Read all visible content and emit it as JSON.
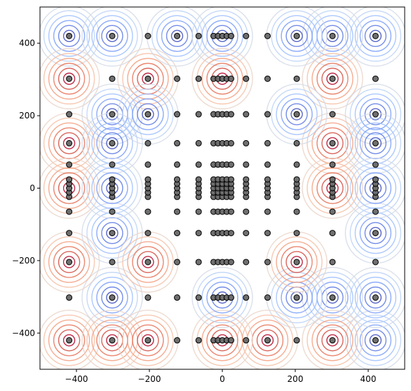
{
  "chart_data": {
    "type": "scatter",
    "title": "",
    "xlabel": "",
    "ylabel": "",
    "xlim": [
      -500,
      500
    ],
    "ylim": [
      -500,
      500
    ],
    "x_ticks": [
      -400,
      -200,
      0,
      200,
      400
    ],
    "y_ticks": [
      -400,
      -200,
      0,
      200,
      400
    ],
    "x_tick_labels": [
      "−400",
      "−200",
      "0",
      "200",
      "400"
    ],
    "y_tick_labels": [
      "−400",
      "−200",
      "0",
      "200",
      "400"
    ],
    "grid": false,
    "point_color": "#5f5f5f",
    "point_edge_color": "#000000",
    "background": "contour rings colored with a coolwarm colormap (blue = low, red = high)",
    "point_coordinates_1d": [
      -420,
      -302,
      -204,
      -124,
      -65,
      -24,
      -12,
      0,
      12,
      24,
      65,
      124,
      204,
      302,
      420
    ],
    "note_grid": "points lie on the Cartesian grid of point_coordinates_1d in both x and y",
    "contour_centers": [
      {
        "x": -420,
        "y": 420,
        "level": "low"
      },
      {
        "x": 420,
        "y": 420,
        "level": "low"
      },
      {
        "x": -420,
        "y": -420,
        "level": "high"
      },
      {
        "x": 420,
        "y": -420,
        "level": "low"
      },
      {
        "x": -302,
        "y": 420,
        "level": "low"
      },
      {
        "x": 302,
        "y": 420,
        "level": "low"
      },
      {
        "x": -420,
        "y": 302,
        "level": "high"
      },
      {
        "x": 302,
        "y": 302,
        "level": "high"
      },
      {
        "x": -302,
        "y": -302,
        "level": "low"
      },
      {
        "x": 302,
        "y": -302,
        "level": "low"
      },
      {
        "x": 420,
        "y": -302,
        "level": "low"
      },
      {
        "x": -302,
        "y": -420,
        "level": "high"
      },
      {
        "x": 302,
        "y": -420,
        "level": "high"
      },
      {
        "x": -420,
        "y": -204,
        "level": "high"
      },
      {
        "x": -302,
        "y": 204,
        "level": "low"
      },
      {
        "x": 420,
        "y": 204,
        "level": "low"
      },
      {
        "x": -420,
        "y": 124,
        "level": "high"
      },
      {
        "x": 302,
        "y": 124,
        "level": "high"
      },
      {
        "x": -302,
        "y": -124,
        "level": "low"
      },
      {
        "x": 420,
        "y": -124,
        "level": "low"
      },
      {
        "x": -302,
        "y": 124,
        "level": "low"
      },
      {
        "x": 420,
        "y": 124,
        "level": "low"
      },
      {
        "x": -204,
        "y": 302,
        "level": "high"
      },
      {
        "x": 204,
        "y": 420,
        "level": "low"
      },
      {
        "x": -204,
        "y": -420,
        "level": "high"
      },
      {
        "x": 204,
        "y": -302,
        "level": "low"
      },
      {
        "x": -124,
        "y": 420,
        "level": "low"
      },
      {
        "x": 124,
        "y": -420,
        "level": "high"
      },
      {
        "x": -420,
        "y": 0,
        "level": "high"
      },
      {
        "x": 420,
        "y": 0,
        "level": "low"
      },
      {
        "x": 302,
        "y": 0,
        "level": "high"
      },
      {
        "x": -302,
        "y": 0,
        "level": "low"
      },
      {
        "x": 0,
        "y": 420,
        "level": "low"
      },
      {
        "x": 0,
        "y": -420,
        "level": "high"
      },
      {
        "x": 0,
        "y": 302,
        "level": "high"
      },
      {
        "x": 0,
        "y": -302,
        "level": "low"
      },
      {
        "x": -204,
        "y": 204,
        "level": "low"
      },
      {
        "x": 204,
        "y": 204,
        "level": "low"
      },
      {
        "x": -204,
        "y": -204,
        "level": "high"
      },
      {
        "x": 204,
        "y": -204,
        "level": "high"
      }
    ]
  }
}
